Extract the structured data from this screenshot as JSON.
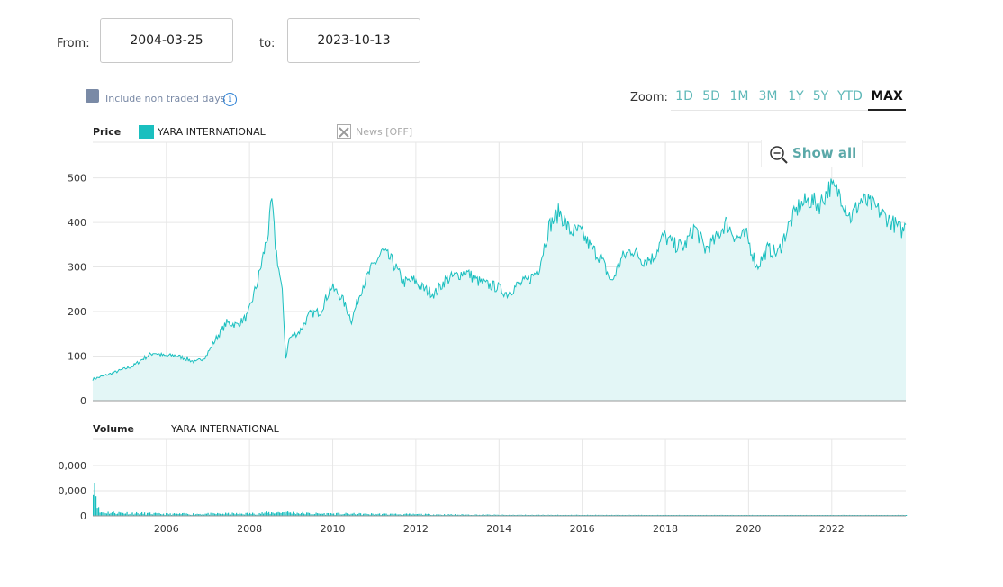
{
  "range": {
    "from_label": "From:",
    "from_value": "2004-03-25",
    "to_label": "to:",
    "to_value": "2023-10-13"
  },
  "options": {
    "include_non_traded_label": "Include non traded days",
    "info_glyph": "i"
  },
  "zoom": {
    "label": "Zoom:",
    "buttons": [
      "1D",
      "5D",
      "1M",
      "3M",
      "1Y",
      "5Y",
      "YTD",
      "MAX"
    ],
    "active": "MAX"
  },
  "legend": {
    "price_label": "Price",
    "series_name": "YARA INTERNATIONAL",
    "news_label": "News [OFF]",
    "volume_label": "Volume",
    "volume_series_name": "YARA INTERNATIONAL"
  },
  "show_all_label": "Show all",
  "colors": {
    "series": "#1abfbf",
    "area": "#e3f6f6",
    "grid": "#e6e6e6",
    "accent": "#5aa8a8"
  },
  "chart_data": [
    {
      "type": "area",
      "series": [
        {
          "name": "YARA INTERNATIONAL",
          "points": [
            [
              "2004-03-25",
              48
            ],
            [
              "2004-09",
              62
            ],
            [
              "2005-03",
              78
            ],
            [
              "2005-06",
              95
            ],
            [
              "2005-09",
              108
            ],
            [
              "2005-12",
              100
            ],
            [
              "2006-03",
              102
            ],
            [
              "2006-06",
              95
            ],
            [
              "2006-09",
              86
            ],
            [
              "2006-12",
              100
            ],
            [
              "2007-03",
              140
            ],
            [
              "2007-06",
              175
            ],
            [
              "2007-09",
              170
            ],
            [
              "2007-12",
              190
            ],
            [
              "2008-03",
              270
            ],
            [
              "2008-06",
              380
            ],
            [
              "2008-07",
              448
            ],
            [
              "2008-08",
              350
            ],
            [
              "2008-10",
              240
            ],
            [
              "2008-11",
              95
            ],
            [
              "2008-12",
              140
            ],
            [
              "2009-03",
              155
            ],
            [
              "2009-06",
              195
            ],
            [
              "2009-09",
              200
            ],
            [
              "2009-12",
              255
            ],
            [
              "2010-03",
              235
            ],
            [
              "2010-06",
              180
            ],
            [
              "2010-09",
              255
            ],
            [
              "2010-12",
              300
            ],
            [
              "2011-03",
              335
            ],
            [
              "2011-06",
              310
            ],
            [
              "2011-09",
              265
            ],
            [
              "2011-12",
              270
            ],
            [
              "2012-03",
              250
            ],
            [
              "2012-06",
              240
            ],
            [
              "2012-09",
              270
            ],
            [
              "2012-12",
              280
            ],
            [
              "2013-03",
              290
            ],
            [
              "2013-06",
              270
            ],
            [
              "2013-09",
              260
            ],
            [
              "2013-12",
              255
            ],
            [
              "2014-03",
              240
            ],
            [
              "2014-06",
              260
            ],
            [
              "2014-09",
              270
            ],
            [
              "2014-12",
              295
            ],
            [
              "2015-03",
              390
            ],
            [
              "2015-06",
              425
            ],
            [
              "2015-09",
              380
            ],
            [
              "2015-12",
              380
            ],
            [
              "2016-03",
              345
            ],
            [
              "2016-06",
              320
            ],
            [
              "2016-09",
              265
            ],
            [
              "2016-12",
              320
            ],
            [
              "2017-03",
              340
            ],
            [
              "2017-06",
              315
            ],
            [
              "2017-09",
              320
            ],
            [
              "2017-12",
              370
            ],
            [
              "2018-03",
              350
            ],
            [
              "2018-06",
              345
            ],
            [
              "2018-09",
              390
            ],
            [
              "2018-12",
              340
            ],
            [
              "2019-03",
              360
            ],
            [
              "2019-06",
              400
            ],
            [
              "2019-09",
              365
            ],
            [
              "2019-12",
              370
            ],
            [
              "2020-03",
              300
            ],
            [
              "2020-06",
              340
            ],
            [
              "2020-09",
              330
            ],
            [
              "2020-12",
              390
            ],
            [
              "2021-03",
              435
            ],
            [
              "2021-06",
              450
            ],
            [
              "2021-09",
              440
            ],
            [
              "2021-12",
              480
            ],
            [
              "2022-03",
              465
            ],
            [
              "2022-06",
              410
            ],
            [
              "2022-09",
              450
            ],
            [
              "2022-12",
              440
            ],
            [
              "2023-03",
              420
            ],
            [
              "2023-06",
              400
            ],
            [
              "2023-09",
              380
            ],
            [
              "2023-10-13",
              395
            ]
          ]
        }
      ],
      "x_ticks": [
        "2006",
        "2008",
        "2010",
        "2012",
        "2014",
        "2016",
        "2018",
        "2020",
        "2022"
      ],
      "y_ticks": [
        "0",
        "100",
        "200",
        "300",
        "400",
        "500"
      ],
      "ylim": [
        0,
        580
      ],
      "grid": true
    },
    {
      "type": "bar",
      "series": [
        {
          "name": "YARA INTERNATIONAL",
          "points": [
            [
              "2004-03-25",
              1.0
            ],
            [
              "2004-04",
              0.6
            ],
            [
              "2004-05",
              0.08
            ],
            [
              "2006-01",
              0.04
            ],
            [
              "2008-01",
              0.05
            ],
            [
              "2008-10",
              0.08
            ],
            [
              "2009-06",
              0.05
            ],
            [
              "2011-01",
              0.04
            ],
            [
              "2014-01",
              0.02
            ],
            [
              "2018-01",
              0.015
            ],
            [
              "2023-10",
              0.015
            ]
          ]
        }
      ],
      "y_ticks": [
        "0",
        "0,000",
        "0,000"
      ],
      "grid": true
    }
  ]
}
